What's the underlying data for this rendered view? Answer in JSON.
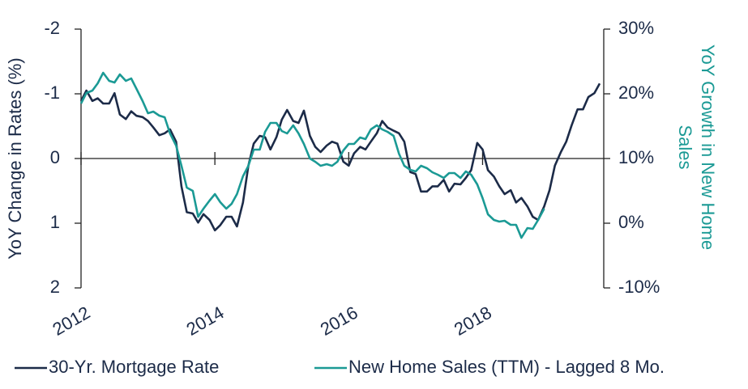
{
  "chart_data": {
    "type": "line",
    "ylabel": "YoY Change in Rates (%)",
    "y2label": "YoY Growth in New Home Sales",
    "xlim": [
      2012,
      2019.75
    ],
    "xticks": [
      2012,
      2014,
      2016,
      2018
    ],
    "ylim": [
      -2,
      2
    ],
    "y_inverted": true,
    "yticks": [
      -2,
      -1,
      0,
      1,
      2
    ],
    "y2lim": [
      -10,
      30
    ],
    "y2ticks": [
      {
        "value": -10,
        "label": "-10%"
      },
      {
        "value": 0,
        "label": "0%"
      },
      {
        "value": 10,
        "label": "10%"
      },
      {
        "value": 20,
        "label": "20%"
      },
      {
        "value": 30,
        "label": "30%"
      }
    ],
    "legend": "bottom",
    "series": [
      {
        "name": "30-Yr. Mortgage Rate",
        "color": "#1c2b48",
        "axis": "y",
        "x": [
          2012,
          2012.08,
          2012.17,
          2012.25,
          2012.33,
          2012.42,
          2012.5,
          2012.58,
          2012.67,
          2012.75,
          2012.83,
          2012.92,
          2013,
          2013.08,
          2013.17,
          2013.25,
          2013.33,
          2013.42,
          2013.5,
          2013.58,
          2013.67,
          2013.75,
          2013.83,
          2013.92,
          2014,
          2014.08,
          2014.17,
          2014.25,
          2014.33,
          2014.42,
          2014.5,
          2014.58,
          2014.67,
          2014.75,
          2014.83,
          2014.92,
          2015,
          2015.08,
          2015.17,
          2015.25,
          2015.33,
          2015.42,
          2015.5,
          2015.58,
          2015.67,
          2015.75,
          2015.83,
          2015.92,
          2016,
          2016.08,
          2016.17,
          2016.25,
          2016.33,
          2016.42,
          2016.5,
          2016.58,
          2016.67,
          2016.75,
          2016.83,
          2016.92,
          2017,
          2017.08,
          2017.17,
          2017.25,
          2017.33,
          2017.42,
          2017.5,
          2017.58,
          2017.67,
          2017.75,
          2017.83,
          2017.92,
          2018,
          2018.08,
          2018.17,
          2018.25,
          2018.33,
          2018.42,
          2018.5,
          2018.58,
          2018.67,
          2018.75,
          2018.83,
          2018.92,
          2019,
          2019.08,
          2019.17,
          2019.25,
          2019.33,
          2019.42,
          2019.5,
          2019.58,
          2019.67,
          2019.75
        ],
        "values": [
          -0.89,
          -1.05,
          -0.89,
          -0.93,
          -0.85,
          -0.85,
          -1.01,
          -0.68,
          -0.61,
          -0.73,
          -0.66,
          -0.64,
          -0.58,
          -0.48,
          -0.36,
          -0.39,
          -0.45,
          -0.26,
          0.43,
          0.83,
          0.85,
          0.99,
          0.86,
          0.95,
          1.11,
          1.03,
          0.9,
          0.9,
          1.05,
          0.68,
          0.11,
          -0.23,
          -0.35,
          -0.33,
          -0.14,
          -0.33,
          -0.6,
          -0.75,
          -0.58,
          -0.55,
          -0.74,
          -0.35,
          -0.18,
          -0.1,
          -0.2,
          -0.26,
          -0.23,
          0.05,
          0.11,
          -0.08,
          -0.18,
          -0.14,
          -0.26,
          -0.39,
          -0.58,
          -0.48,
          -0.43,
          -0.39,
          -0.26,
          0.21,
          0.24,
          0.51,
          0.51,
          0.43,
          0.43,
          0.33,
          0.51,
          0.39,
          0.4,
          0.3,
          0.18,
          -0.24,
          -0.14,
          0.18,
          0.28,
          0.43,
          0.55,
          0.49,
          0.68,
          0.61,
          0.74,
          0.9,
          0.95,
          0.74,
          0.49,
          0.11,
          -0.1,
          -0.26,
          -0.51,
          -0.76,
          -0.76,
          -0.95,
          -1.01,
          -1.16
        ]
      },
      {
        "name": "New Home Sales (TTM) - Lagged 8 Mo.",
        "color": "#1b9a95",
        "axis": "y2",
        "x": [
          2012,
          2012.08,
          2012.17,
          2012.25,
          2012.33,
          2012.42,
          2012.5,
          2012.58,
          2012.67,
          2012.75,
          2012.83,
          2012.92,
          2013,
          2013.08,
          2013.17,
          2013.25,
          2013.33,
          2013.42,
          2013.5,
          2013.58,
          2013.67,
          2013.75,
          2013.83,
          2013.92,
          2014,
          2014.08,
          2014.17,
          2014.25,
          2014.33,
          2014.42,
          2014.5,
          2014.58,
          2014.67,
          2014.75,
          2014.83,
          2014.92,
          2015,
          2015.08,
          2015.17,
          2015.25,
          2015.33,
          2015.42,
          2015.5,
          2015.58,
          2015.67,
          2015.75,
          2015.83,
          2015.92,
          2016,
          2016.08,
          2016.17,
          2016.25,
          2016.33,
          2016.42,
          2016.5,
          2016.58,
          2016.67,
          2016.75,
          2016.83,
          2016.92,
          2017,
          2017.08,
          2017.17,
          2017.25,
          2017.33,
          2017.42,
          2017.5,
          2017.58,
          2017.67,
          2017.75,
          2017.83,
          2017.92,
          2018,
          2018.08,
          2018.17,
          2018.25,
          2018.33,
          2018.42,
          2018.5,
          2018.58,
          2018.67,
          2018.75,
          2018.83,
          2018.92
        ],
        "values": [
          18.5,
          20.13,
          20.5,
          21.63,
          23.25,
          22,
          21.75,
          23,
          22,
          22.38,
          20.75,
          18.88,
          17,
          17.25,
          16.63,
          16.38,
          13.88,
          12,
          8.88,
          5.5,
          5,
          1,
          2.25,
          3.5,
          4.5,
          3.25,
          2.25,
          3,
          4.5,
          7.25,
          8.88,
          11.38,
          11.38,
          14.13,
          15.5,
          15.5,
          14.25,
          13.88,
          15.13,
          13.88,
          12.25,
          10,
          9.5,
          8.88,
          9.13,
          8.88,
          9.5,
          11.25,
          12.25,
          12.25,
          13.25,
          13,
          14.5,
          15.13,
          14.5,
          14.13,
          13.5,
          10.75,
          8.88,
          8.25,
          8,
          8.88,
          8.5,
          7.88,
          7.5,
          7,
          7.75,
          7.75,
          7,
          8,
          7.5,
          6,
          3.88,
          1.38,
          0.5,
          0.25,
          0.38,
          -0.25,
          -0.25,
          -2.25,
          -0.75,
          -0.88,
          0.5,
          2.25
        ]
      }
    ]
  }
}
